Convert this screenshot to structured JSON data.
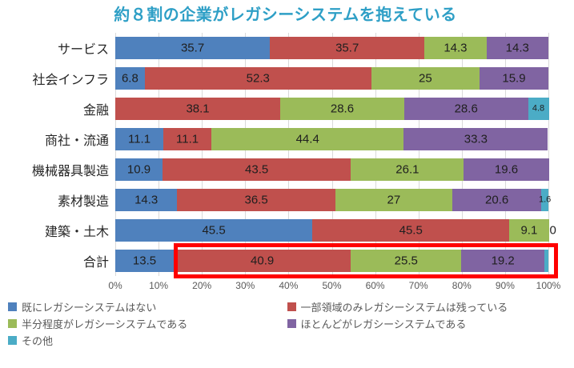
{
  "title": {
    "text": "約８割の企業がレガシーシステムを抱えている",
    "color": "#2E9FC6"
  },
  "chart_data": {
    "type": "bar",
    "orientation": "horizontal",
    "stacked": true,
    "title": "約８割の企業がレガシーシステムを抱えている",
    "categories": [
      "サービス",
      "社会インフラ",
      "金融",
      "商社・流通",
      "機械器具製造",
      "素材製造",
      "建築・土木",
      "合計"
    ],
    "series": [
      {
        "name": "既にレガシーシステムはない",
        "color": "#4F81BD",
        "values": [
          35.7,
          6.8,
          0,
          11.1,
          10.9,
          14.3,
          45.5,
          13.5
        ],
        "labels": [
          "35.7",
          "6.8",
          "0",
          "11.1",
          "10.9",
          "14.3",
          "45.5",
          "13.5"
        ]
      },
      {
        "name": "一部領域のみレガシーシステムは残っている",
        "color": "#C0504D",
        "values": [
          35.7,
          52.3,
          38.1,
          11.1,
          43.5,
          36.5,
          45.5,
          40.9
        ],
        "labels": [
          "35.7",
          "52.3",
          "38.1",
          "11.1",
          "43.5",
          "36.5",
          "45.5",
          "40.9"
        ]
      },
      {
        "name": "半分程度がレガシーシステムである",
        "color": "#9BBB59",
        "values": [
          14.3,
          25,
          28.6,
          44.4,
          26.1,
          27,
          9.1,
          25.5
        ],
        "labels": [
          "14.3",
          "25",
          "28.6",
          "44.4",
          "26.1",
          "27",
          "9.1",
          "25.5"
        ]
      },
      {
        "name": "ほとんどがレガシーシステムである",
        "color": "#8064A2",
        "values": [
          14.3,
          15.9,
          28.6,
          33.3,
          19.6,
          20.6,
          0,
          19.2
        ],
        "labels": [
          "14.3",
          "15.9",
          "28.6",
          "33.3",
          "19.6",
          "20.6",
          "0",
          "19.2"
        ]
      },
      {
        "name": "その他",
        "color": "#4BACC6",
        "values": [
          0,
          0,
          4.8,
          0,
          0,
          1.6,
          0,
          0.9
        ],
        "labels": [
          "",
          "",
          "4.8",
          "",
          "",
          "1.6",
          "",
          ""
        ]
      }
    ],
    "x_axis": {
      "min": 0,
      "max": 100,
      "ticks": [
        "0%",
        "10%",
        "20%",
        "30%",
        "40%",
        "50%",
        "60%",
        "70%",
        "80%",
        "90%",
        "100%"
      ]
    },
    "legend_position": "bottom",
    "grid": true,
    "gridline_color": "#D9D9D9",
    "annotations": [
      {
        "type": "highlight-box",
        "category": "合計",
        "from_percent": 13.5,
        "to_percent": 100,
        "border_color": "#FF0000"
      }
    ]
  }
}
